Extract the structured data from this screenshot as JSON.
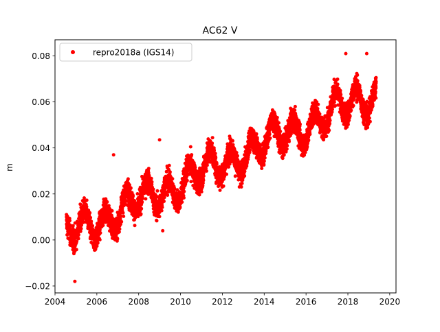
{
  "chart_data": {
    "type": "scatter",
    "title": "AC62 V",
    "xlabel": "",
    "ylabel": "m",
    "xlim": [
      2004.0,
      2020.3
    ],
    "ylim": [
      -0.023,
      0.087
    ],
    "xticks": [
      2004,
      2006,
      2008,
      2010,
      2012,
      2014,
      2016,
      2018,
      2020
    ],
    "xtick_labels": [
      "2004",
      "2006",
      "2008",
      "2010",
      "2012",
      "2014",
      "2016",
      "2018",
      "2020"
    ],
    "yticks": [
      -0.02,
      0.0,
      0.02,
      0.04,
      0.06,
      0.08
    ],
    "ytick_labels": [
      "−0.02",
      "0.00",
      "0.02",
      "0.04",
      "0.06",
      "0.08"
    ],
    "grid": false,
    "legend": {
      "placement": "top-left",
      "entries": [
        "repro2018a (IGS14)"
      ]
    },
    "series": [
      {
        "name": "repro2018a (IGS14)",
        "color": "#ff0000",
        "marker": "circle",
        "x_start": 2004.55,
        "x_end": 2019.35,
        "points_per_year": 365,
        "trend": {
          "slope_per_year": 0.0042,
          "value_at_start": 0.002
        },
        "seasonal_amplitude": 0.006,
        "noise_sd": 0.0035,
        "outliers": [
          {
            "x": 2004.95,
            "y": -0.018
          },
          {
            "x": 2006.8,
            "y": 0.037
          },
          {
            "x": 2009.0,
            "y": 0.0435
          },
          {
            "x": 2009.15,
            "y": 0.004
          },
          {
            "x": 2017.9,
            "y": 0.081
          },
          {
            "x": 2018.9,
            "y": 0.081
          }
        ]
      }
    ]
  }
}
